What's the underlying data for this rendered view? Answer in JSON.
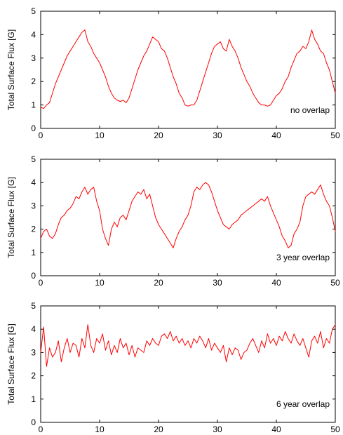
{
  "chart_data": [
    {
      "type": "line",
      "ylabel": "Total Surface Flux [G]",
      "annotation": "no overlap",
      "xlim": [
        0,
        50
      ],
      "ylim": [
        0,
        5
      ],
      "xticks": [
        0,
        10,
        20,
        30,
        40,
        50
      ],
      "yticks": [
        0,
        1,
        2,
        3,
        4,
        5
      ],
      "series": [
        {
          "color": "#ff0000",
          "x": [
            0,
            0.5,
            1,
            1.5,
            2,
            2.5,
            3,
            3.5,
            4,
            4.5,
            5,
            5.5,
            6,
            6.5,
            7,
            7.5,
            8,
            8.5,
            9,
            9.5,
            10,
            10.5,
            11,
            11.5,
            12,
            12.5,
            13,
            13.5,
            14,
            14.5,
            15,
            15.5,
            16,
            16.5,
            17,
            17.5,
            18,
            18.5,
            19,
            19.5,
            20,
            20.5,
            21,
            21.5,
            22,
            22.5,
            23,
            23.5,
            24,
            24.5,
            25,
            25.5,
            26,
            26.5,
            27,
            27.5,
            28,
            28.5,
            29,
            29.5,
            30,
            30.5,
            31,
            31.5,
            32,
            32.5,
            33,
            33.5,
            34,
            34.5,
            35,
            35.5,
            36,
            36.5,
            37,
            37.5,
            38,
            38.5,
            39,
            39.5,
            40,
            40.5,
            41,
            41.5,
            42,
            42.5,
            43,
            43.5,
            44,
            44.5,
            45,
            45.5,
            46,
            46.5,
            47,
            47.5,
            48,
            48.5,
            49,
            49.5,
            50
          ],
          "y": [
            0.9,
            0.85,
            1.0,
            1.1,
            1.5,
            1.9,
            2.2,
            2.5,
            2.8,
            3.1,
            3.3,
            3.5,
            3.7,
            3.9,
            4.1,
            4.2,
            3.7,
            3.5,
            3.2,
            3.0,
            2.8,
            2.5,
            2.2,
            1.8,
            1.5,
            1.3,
            1.2,
            1.15,
            1.2,
            1.1,
            1.3,
            1.7,
            2.1,
            2.5,
            2.8,
            3.1,
            3.3,
            3.6,
            3.9,
            3.8,
            3.7,
            3.4,
            3.3,
            3.0,
            2.6,
            2.2,
            1.9,
            1.5,
            1.3,
            1.0,
            0.95,
            1.0,
            1.0,
            1.2,
            1.6,
            2.0,
            2.4,
            2.8,
            3.2,
            3.5,
            3.6,
            3.7,
            3.4,
            3.3,
            3.8,
            3.5,
            3.3,
            3.0,
            2.6,
            2.3,
            2.0,
            1.8,
            1.5,
            1.3,
            1.1,
            1.0,
            1.0,
            0.95,
            1.0,
            1.2,
            1.4,
            1.5,
            1.7,
            2.0,
            2.2,
            2.6,
            2.9,
            3.2,
            3.3,
            3.5,
            3.4,
            3.7,
            4.2,
            3.8,
            3.6,
            3.3,
            3.2,
            2.8,
            2.5,
            2.0,
            1.5
          ]
        }
      ]
    },
    {
      "type": "line",
      "ylabel": "Total Surface Flux [G]",
      "annotation": "3 year overlap",
      "xlim": [
        0,
        50
      ],
      "ylim": [
        0,
        5
      ],
      "xticks": [
        0,
        10,
        20,
        30,
        40,
        50
      ],
      "yticks": [
        0,
        1,
        2,
        3,
        4,
        5
      ],
      "series": [
        {
          "color": "#ff0000",
          "x": [
            0,
            0.5,
            1,
            1.5,
            2,
            2.5,
            3,
            3.5,
            4,
            4.5,
            5,
            5.5,
            6,
            6.5,
            7,
            7.5,
            8,
            8.5,
            9,
            9.5,
            10,
            10.5,
            11,
            11.5,
            12,
            12.5,
            13,
            13.5,
            14,
            14.5,
            15,
            15.5,
            16,
            16.5,
            17,
            17.5,
            18,
            18.5,
            19,
            19.5,
            20,
            20.5,
            21,
            21.5,
            22,
            22.5,
            23,
            23.5,
            24,
            24.5,
            25,
            25.5,
            26,
            26.5,
            27,
            27.5,
            28,
            28.5,
            29,
            29.5,
            30,
            30.5,
            31,
            31.5,
            32,
            32.5,
            33,
            33.5,
            34,
            34.5,
            35,
            35.5,
            36,
            36.5,
            37,
            37.5,
            38,
            38.5,
            39,
            39.5,
            40,
            40.5,
            41,
            41.5,
            42,
            42.5,
            43,
            43.5,
            44,
            44.5,
            45,
            45.5,
            46,
            46.5,
            47,
            47.5,
            48,
            48.5,
            49,
            49.5,
            50
          ],
          "y": [
            1.6,
            1.9,
            2.0,
            1.7,
            1.6,
            1.8,
            2.2,
            2.5,
            2.6,
            2.8,
            2.9,
            3.1,
            3.4,
            3.3,
            3.6,
            3.8,
            3.5,
            3.7,
            3.8,
            3.2,
            2.8,
            2.0,
            1.6,
            1.3,
            2.0,
            2.3,
            2.1,
            2.5,
            2.6,
            2.4,
            2.8,
            3.2,
            3.4,
            3.6,
            3.5,
            3.7,
            3.3,
            3.5,
            3.0,
            2.5,
            2.2,
            2.0,
            1.8,
            1.6,
            1.4,
            1.2,
            1.6,
            1.9,
            2.1,
            2.4,
            2.6,
            3.0,
            3.6,
            3.8,
            3.7,
            3.9,
            4.0,
            3.9,
            3.6,
            3.2,
            2.8,
            2.5,
            2.2,
            2.1,
            2.0,
            2.2,
            2.3,
            2.4,
            2.6,
            2.7,
            2.8,
            2.9,
            3.0,
            3.1,
            3.2,
            3.3,
            3.2,
            3.4,
            3.0,
            2.7,
            2.4,
            2.1,
            1.7,
            1.5,
            1.2,
            1.3,
            1.8,
            2.0,
            2.3,
            3.0,
            3.4,
            3.5,
            3.6,
            3.5,
            3.7,
            3.9,
            3.5,
            3.2,
            3.0,
            2.5,
            1.9
          ]
        }
      ]
    },
    {
      "type": "line",
      "ylabel": "Total Surface Flux [G]",
      "annotation": "6 year overlap",
      "xlim": [
        0,
        50
      ],
      "ylim": [
        0,
        5
      ],
      "xticks": [
        0,
        10,
        20,
        30,
        40,
        50
      ],
      "yticks": [
        0,
        1,
        2,
        3,
        4,
        5
      ],
      "series": [
        {
          "color": "#ff0000",
          "x": [
            0,
            0.5,
            1,
            1.5,
            2,
            2.5,
            3,
            3.5,
            4,
            4.5,
            5,
            5.5,
            6,
            6.5,
            7,
            7.5,
            8,
            8.5,
            9,
            9.5,
            10,
            10.5,
            11,
            11.5,
            12,
            12.5,
            13,
            13.5,
            14,
            14.5,
            15,
            15.5,
            16,
            16.5,
            17,
            17.5,
            18,
            18.5,
            19,
            19.5,
            20,
            20.5,
            21,
            21.5,
            22,
            22.5,
            23,
            23.5,
            24,
            24.5,
            25,
            25.5,
            26,
            26.5,
            27,
            27.5,
            28,
            28.5,
            29,
            29.5,
            30,
            30.5,
            31,
            31.5,
            32,
            32.5,
            33,
            33.5,
            34,
            34.5,
            35,
            35.5,
            36,
            36.5,
            37,
            37.5,
            38,
            38.5,
            39,
            39.5,
            40,
            40.5,
            41,
            41.5,
            42,
            42.5,
            43,
            43.5,
            44,
            44.5,
            45,
            45.5,
            46,
            46.5,
            47,
            47.5,
            48,
            48.5,
            49,
            49.5,
            50
          ],
          "y": [
            3.0,
            4.1,
            2.4,
            3.2,
            2.8,
            3.0,
            3.5,
            2.6,
            3.2,
            3.6,
            3.0,
            3.4,
            3.3,
            2.8,
            3.6,
            3.2,
            4.2,
            3.3,
            3.0,
            3.6,
            3.4,
            3.8,
            3.1,
            3.5,
            2.9,
            3.3,
            3.0,
            3.6,
            3.2,
            3.4,
            2.9,
            3.3,
            2.8,
            3.2,
            3.1,
            3.0,
            3.5,
            3.3,
            3.6,
            3.4,
            3.3,
            3.7,
            3.8,
            3.6,
            3.9,
            3.5,
            3.7,
            3.4,
            3.6,
            3.3,
            3.5,
            3.2,
            3.6,
            3.4,
            3.7,
            3.5,
            3.2,
            3.6,
            3.1,
            3.4,
            3.2,
            3.0,
            3.3,
            2.6,
            3.2,
            2.9,
            3.2,
            3.1,
            2.7,
            3.0,
            3.1,
            3.4,
            3.6,
            3.3,
            3.0,
            3.5,
            3.2,
            3.8,
            3.4,
            3.6,
            3.3,
            3.7,
            3.5,
            3.9,
            3.6,
            3.4,
            3.8,
            3.5,
            3.3,
            3.6,
            3.2,
            2.8,
            3.5,
            3.7,
            3.4,
            3.9,
            3.2,
            3.6,
            3.4,
            4.0,
            4.2
          ]
        }
      ]
    }
  ]
}
